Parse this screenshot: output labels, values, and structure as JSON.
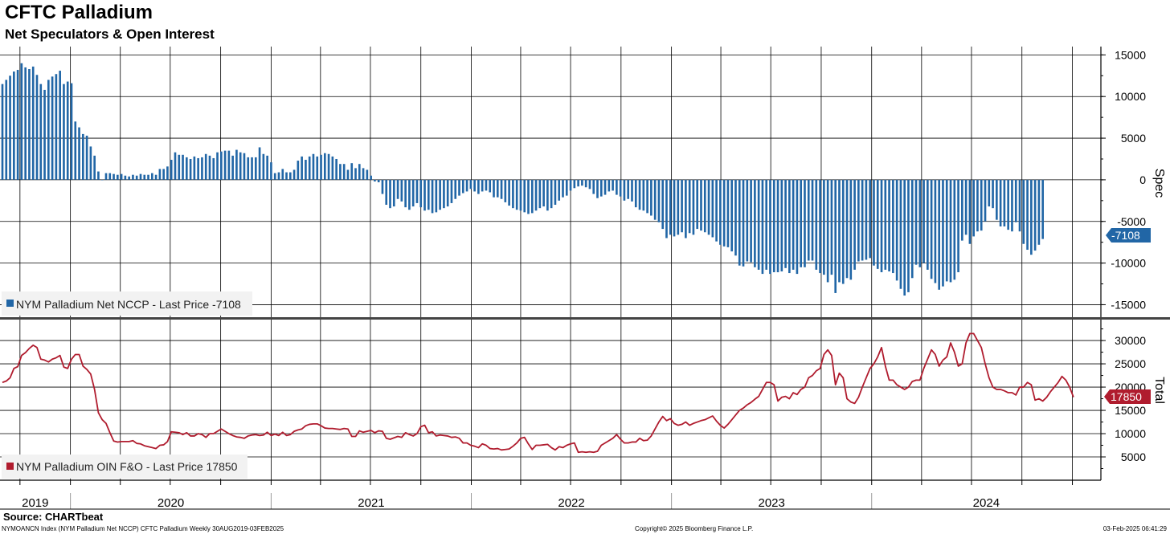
{
  "title": "CFTC Palladium",
  "subtitle": "Net Speculators & Open Interest",
  "source": "Source: CHARTbeat",
  "footer": {
    "left": "NYMOANCN Index (NYM Palladium Net NCCP) CFTC Palladium  Weekly 30AUG2019-03FEB2025",
    "center": "Copyright© 2025 Bloomberg Finance L.P.",
    "right": "03-Feb-2025 06:41:29"
  },
  "colors": {
    "spec": "#2166a6",
    "total": "#b01c2e",
    "grid": "#000000"
  },
  "chart_data": [
    {
      "type": "bar",
      "ylabel": "Spec",
      "legend": "NYM Palladium Net NCCP - Last Price -7108",
      "last_value": -7108,
      "last_label": "-7108",
      "ylim": [
        -16500,
        16000
      ],
      "yticks": [
        15000,
        10000,
        5000,
        0,
        -5000,
        -10000,
        -15000
      ],
      "ytick_labels": [
        "15000",
        "10000",
        "5000",
        "0",
        "-5000",
        "-10000",
        "-15000"
      ],
      "x_start": "2019-08-30",
      "x_end": "2025-01-31",
      "frequency": "weekly",
      "values": [
        11500,
        12000,
        12500,
        13000,
        13200,
        14000,
        13500,
        13300,
        13600,
        12600,
        11500,
        10800,
        12000,
        12400,
        12700,
        13100,
        11500,
        11800,
        11600,
        7000,
        6300,
        5500,
        5300,
        4000,
        2900,
        1000,
        0,
        800,
        800,
        700,
        600,
        700,
        500,
        400,
        600,
        500,
        700,
        600,
        600,
        800,
        600,
        1300,
        1300,
        1600,
        2400,
        3300,
        3000,
        3000,
        2700,
        2500,
        2800,
        2600,
        2700,
        3100,
        2900,
        2600,
        3300,
        3400,
        3500,
        3500,
        2900,
        3600,
        3300,
        3200,
        2700,
        2700,
        2700,
        3900,
        3100,
        2900,
        2100,
        800,
        900,
        1300,
        900,
        900,
        1200,
        2300,
        2800,
        2400,
        2800,
        3100,
        2800,
        3000,
        3200,
        3100,
        2800,
        2500,
        1900,
        1900,
        1200,
        2000,
        1400,
        1900,
        1400,
        1200,
        500,
        -200,
        -300,
        -1700,
        -3000,
        -3400,
        -3200,
        -2300,
        -2600,
        -3300,
        -3600,
        -3200,
        -2800,
        -3300,
        -3700,
        -3600,
        -4000,
        -3900,
        -3600,
        -3400,
        -3200,
        -2800,
        -2300,
        -1900,
        -1600,
        -1400,
        -1100,
        -1400,
        -1700,
        -1400,
        -1300,
        -1500,
        -2100,
        -2100,
        -2300,
        -2700,
        -3100,
        -3400,
        -3600,
        -3700,
        -3900,
        -4100,
        -4000,
        -3700,
        -3400,
        -3200,
        -3700,
        -3400,
        -3000,
        -2500,
        -2100,
        -1900,
        -1300,
        -1000,
        -800,
        -700,
        -900,
        -1100,
        -1700,
        -2200,
        -2000,
        -1800,
        -1400,
        -1300,
        -1800,
        -2000,
        -2500,
        -2300,
        -2600,
        -3300,
        -3600,
        -3700,
        -4000,
        -4300,
        -4800,
        -5100,
        -5900,
        -7000,
        -6600,
        -6800,
        -6600,
        -6300,
        -7000,
        -6400,
        -6600,
        -5900,
        -6100,
        -6300,
        -6600,
        -6900,
        -7400,
        -7800,
        -8000,
        -8100,
        -8600,
        -9100,
        -10300,
        -10400,
        -9800,
        -9900,
        -10500,
        -10800,
        -11300,
        -10800,
        -11300,
        -11100,
        -11100,
        -11000,
        -10600,
        -11200,
        -10800,
        -11300,
        -10500,
        -10500,
        -9700,
        -9700,
        -10800,
        -11200,
        -11400,
        -12300,
        -11400,
        -13600,
        -12300,
        -12500,
        -11800,
        -12000,
        -10800,
        -9800,
        -9700,
        -9600,
        -9400,
        -10300,
        -10700,
        -11100,
        -10800,
        -11000,
        -11200,
        -12100,
        -13100,
        -13900,
        -13500,
        -11800,
        -10200,
        -10500,
        -10000,
        -10800,
        -11900,
        -12400,
        -13200,
        -12800,
        -12200,
        -12300,
        -12000,
        -11100,
        -7300,
        -6600,
        -7700,
        -6800,
        -6200,
        -6100,
        -5000,
        -3200,
        -3400,
        -4800,
        -5600,
        -5600,
        -6000,
        -6200,
        -5100,
        -6200,
        -7700,
        -8400,
        -9000,
        -8500,
        -7800,
        -7108
      ]
    },
    {
      "type": "line",
      "ylabel": "Total",
      "legend": "NYM Palladium OIN F&O - Last Price 17850",
      "last_value": 17850,
      "last_label": "17850",
      "ylim": [
        0,
        34500
      ],
      "yticks": [
        30000,
        25000,
        20000,
        15000,
        10000,
        5000
      ],
      "ytick_labels": [
        "30000",
        "25000",
        "20000",
        "15000",
        "10000",
        "5000"
      ],
      "x_start": "2019-08-30",
      "x_end": "2025-01-31",
      "frequency": "weekly",
      "values": [
        21000,
        21300,
        22000,
        24000,
        24400,
        26800,
        27400,
        28300,
        29000,
        28500,
        26000,
        25800,
        25400,
        26000,
        26300,
        26800,
        24300,
        24000,
        26000,
        27000,
        27000,
        24500,
        23800,
        22800,
        19500,
        14500,
        13000,
        12200,
        10200,
        8400,
        8200,
        8300,
        8300,
        8300,
        8500,
        7900,
        7800,
        7400,
        7200,
        7000,
        6800,
        7500,
        7600,
        8300,
        10400,
        10300,
        10200,
        9800,
        10200,
        9500,
        9500,
        10000,
        9800,
        9200,
        10000,
        10000,
        10500,
        11000,
        10500,
        10000,
        9600,
        9300,
        9200,
        9000,
        9500,
        9700,
        9800,
        9600,
        9700,
        10300,
        9600,
        9900,
        9600,
        10300,
        9600,
        9800,
        10500,
        10800,
        11000,
        11700,
        12000,
        12100,
        12100,
        11700,
        11200,
        11100,
        11100,
        11000,
        10900,
        11100,
        11000,
        9400,
        9400,
        10600,
        10300,
        10500,
        10700,
        10200,
        10600,
        10500,
        9000,
        8800,
        9100,
        9400,
        9200,
        10200,
        9800,
        9500,
        10000,
        11500,
        11800,
        10200,
        10400,
        9500,
        9700,
        9600,
        9500,
        9200,
        9300,
        9000,
        8000,
        8000,
        7500,
        7300,
        7000,
        7800,
        7500,
        6800,
        6700,
        6800,
        6500,
        6600,
        6700,
        7300,
        8000,
        9000,
        9200,
        7800,
        6600,
        7500,
        7500,
        7600,
        7700,
        7000,
        6500,
        7200,
        7000,
        7500,
        7800,
        8000,
        6000,
        6100,
        6000,
        6100,
        6000,
        6200,
        7500,
        8000,
        8500,
        9000,
        9800,
        8800,
        8000,
        8000,
        8200,
        8200,
        9000,
        8500,
        8600,
        9500,
        11000,
        12500,
        13700,
        12800,
        13200,
        12200,
        11800,
        12000,
        12500,
        11800,
        12200,
        12500,
        12800,
        13000,
        13400,
        13800,
        12700,
        11800,
        11200,
        12000,
        13000,
        14000,
        15000,
        15500,
        16200,
        16700,
        17400,
        18000,
        19500,
        21000,
        21000,
        20500,
        17000,
        17800,
        18000,
        17500,
        18800,
        18400,
        19500,
        20000,
        22000,
        22500,
        23500,
        24000,
        27000,
        28000,
        26800,
        20500,
        23000,
        22000,
        17500,
        16800,
        16500,
        17800,
        20000,
        22000,
        24000,
        25000,
        26500,
        28500,
        24500,
        21500,
        21500,
        20500,
        20000,
        19500,
        20000,
        21200,
        21500,
        21500,
        24000,
        26000,
        28000,
        27000,
        24500,
        25800,
        26500,
        29500,
        27500,
        24500,
        25000,
        29500,
        31500,
        31500,
        30000,
        28500,
        25000,
        22000,
        20000,
        19500,
        19500,
        19200,
        18800,
        18800,
        18300,
        20000,
        20000,
        21000,
        20500,
        17200,
        17500,
        17000,
        17800,
        19000,
        20000,
        21000,
        22300,
        21500,
        20000,
        17850
      ]
    }
  ],
  "x_axis": {
    "year_labels": [
      "2019",
      "2020",
      "2021",
      "2022",
      "2023",
      "2024"
    ],
    "year_starts": [
      "2019-08-30",
      "2020-01-01",
      "2021-01-01",
      "2022-01-01",
      "2023-01-01",
      "2024-01-01"
    ]
  }
}
